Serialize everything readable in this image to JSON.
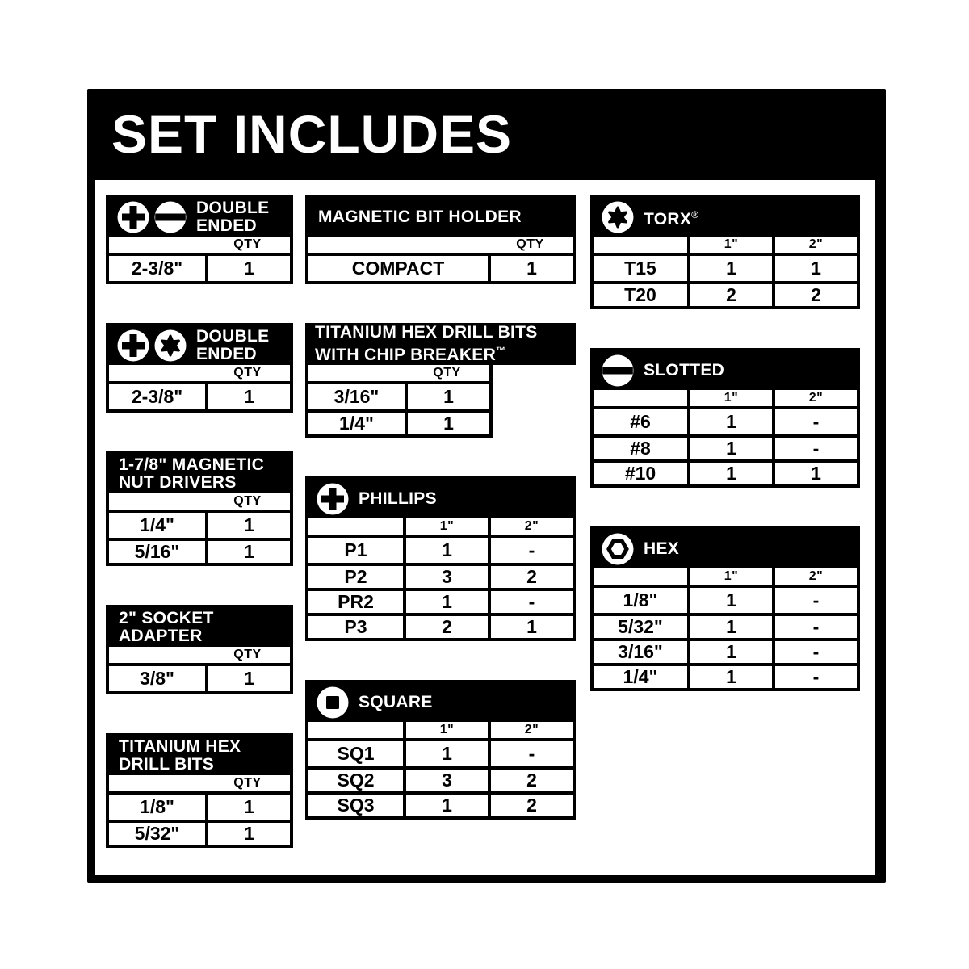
{
  "page_title": "SET INCLUDES",
  "qty_header": "QTY",
  "size_headers": [
    "1\"",
    "2\""
  ],
  "colors": {
    "panel": "#000000",
    "paper": "#ffffff",
    "text_on_panel": "#ffffff",
    "table_text": "#000000"
  },
  "columns": [
    {
      "tables": [
        {
          "id": "double-ended-phillips-slotted",
          "icons": [
            "phillips",
            "slotted"
          ],
          "title_lines": [
            "DOUBLE",
            "ENDED"
          ],
          "layout": "qty",
          "rows": [
            {
              "label": "2-3/8\"",
              "qty": "1"
            }
          ]
        },
        {
          "id": "double-ended-phillips-torx",
          "icons": [
            "phillips",
            "torx"
          ],
          "title_lines": [
            "DOUBLE",
            "ENDED"
          ],
          "layout": "qty",
          "rows": [
            {
              "label": "2-3/8\"",
              "qty": "1"
            }
          ]
        },
        {
          "id": "magnetic-nut-drivers",
          "icons": [],
          "title_lines": [
            "1-7/8\" MAGNETIC",
            "NUT DRIVERS"
          ],
          "layout": "qty",
          "rows": [
            {
              "label": "1/4\"",
              "qty": "1"
            },
            {
              "label": "5/16\"",
              "qty": "1"
            }
          ]
        },
        {
          "id": "socket-adapter",
          "icons": [],
          "title_lines": [
            "2\" SOCKET",
            "ADAPTER"
          ],
          "layout": "qty",
          "rows": [
            {
              "label": "3/8\"",
              "qty": "1"
            }
          ]
        },
        {
          "id": "titanium-hex-drill-bits",
          "icons": [],
          "title_lines": [
            "TITANIUM HEX",
            "DRILL BITS"
          ],
          "layout": "qty",
          "rows": [
            {
              "label": "1/8\"",
              "qty": "1"
            },
            {
              "label": "5/32\"",
              "qty": "1"
            }
          ]
        }
      ]
    },
    {
      "tables": [
        {
          "id": "magnetic-bit-holder",
          "icons": [],
          "title_lines": [
            "MAGNETIC BIT HOLDER"
          ],
          "layout": "qty",
          "rows": [
            {
              "label": "COMPACT",
              "qty": "1"
            }
          ]
        },
        {
          "id": "titanium-hex-chip-breaker",
          "icons": [],
          "title_lines": [
            "TITANIUM HEX DRILL BITS",
            "WITH CHIP BREAKER™"
          ],
          "layout": "qty",
          "split": true,
          "rows": [
            {
              "label": "3/16\"",
              "qty": "1"
            },
            {
              "label": "1/4\"",
              "qty": "1"
            }
          ]
        },
        {
          "id": "phillips",
          "icons": [
            "phillips"
          ],
          "title_lines": [
            "PHILLIPS"
          ],
          "layout": "sizes",
          "rows": [
            {
              "label": "P1",
              "one": "1",
              "two": "-"
            },
            {
              "label": "P2",
              "one": "3",
              "two": "2"
            },
            {
              "label": "PR2",
              "one": "1",
              "two": "-"
            },
            {
              "label": "P3",
              "one": "2",
              "two": "1"
            }
          ]
        },
        {
          "id": "square",
          "icons": [
            "square"
          ],
          "title_lines": [
            "SQUARE"
          ],
          "layout": "sizes",
          "rows": [
            {
              "label": "SQ1",
              "one": "1",
              "two": "-"
            },
            {
              "label": "SQ2",
              "one": "3",
              "two": "2"
            },
            {
              "label": "SQ3",
              "one": "1",
              "two": "2"
            }
          ]
        }
      ]
    },
    {
      "tables": [
        {
          "id": "torx",
          "icons": [
            "torx"
          ],
          "title_lines": [
            "TORX®"
          ],
          "layout": "sizes",
          "rows": [
            {
              "label": "T15",
              "one": "1",
              "two": "1"
            },
            {
              "label": "T20",
              "one": "2",
              "two": "2"
            }
          ]
        },
        {
          "id": "slotted",
          "icons": [
            "slotted"
          ],
          "title_lines": [
            "SLOTTED"
          ],
          "layout": "sizes",
          "rows": [
            {
              "label": "#6",
              "one": "1",
              "two": "-"
            },
            {
              "label": "#8",
              "one": "1",
              "two": "-"
            },
            {
              "label": "#10",
              "one": "1",
              "two": "1"
            }
          ]
        },
        {
          "id": "hex",
          "icons": [
            "hex"
          ],
          "title_lines": [
            "HEX"
          ],
          "layout": "sizes",
          "rows": [
            {
              "label": "1/8\"",
              "one": "1",
              "two": "-"
            },
            {
              "label": "5/32\"",
              "one": "1",
              "two": "-"
            },
            {
              "label": "3/16\"",
              "one": "1",
              "two": "-"
            },
            {
              "label": "1/4\"",
              "one": "1",
              "two": "-"
            }
          ]
        }
      ]
    }
  ]
}
